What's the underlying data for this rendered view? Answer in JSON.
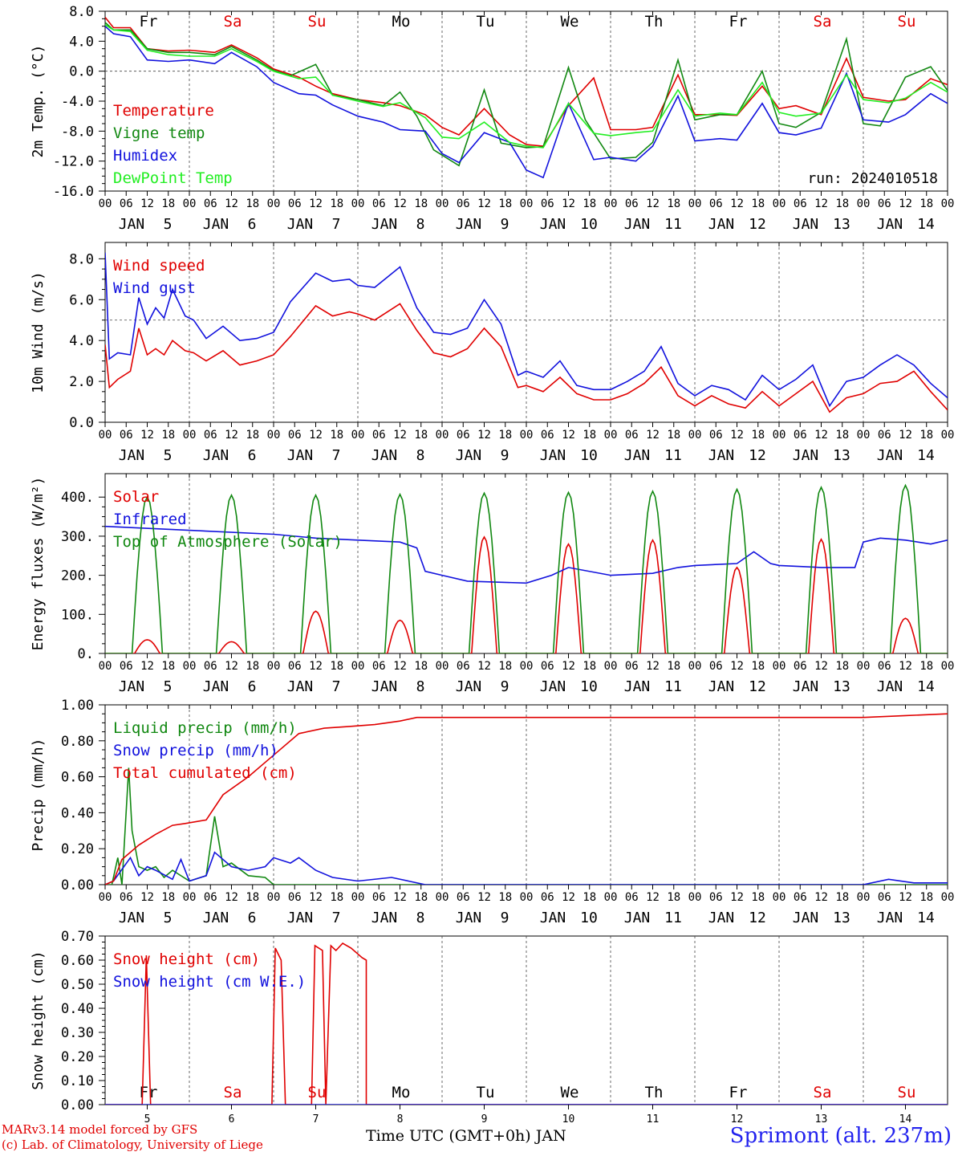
{
  "run_label": "run: 2024010518",
  "footer": {
    "credit_line1": "MARv3.14 model forced by GFS",
    "credit_line2": "(c) Lab. of Climatology, University of Liege",
    "location": "Sprimont (alt. 237m)",
    "x_title": "Time UTC (GMT+0h) JAN"
  },
  "colors": {
    "red": "#e00000",
    "green": "#118811",
    "blue": "#1111dd",
    "lightgreen": "#22ee22",
    "black": "#000000"
  },
  "chart_data": [
    {
      "type": "line",
      "ylabel": "2m Temp. (°C)",
      "ylim": [
        -16,
        8
      ],
      "yticks": [
        8,
        4,
        0,
        -4,
        -8,
        -12,
        -16
      ],
      "ytick_labels": [
        "8.0",
        "4.0",
        "0.0",
        "-4.0",
        "-8.0",
        "-12.0",
        "-16.0"
      ],
      "refline": 0,
      "days": [
        {
          "label": "Fr",
          "color": "black"
        },
        {
          "label": "Sa",
          "color": "red"
        },
        {
          "label": "Su",
          "color": "red"
        },
        {
          "label": "Mo",
          "color": "black"
        },
        {
          "label": "Tu",
          "color": "black"
        },
        {
          "label": "We",
          "color": "black"
        },
        {
          "label": "Th",
          "color": "black"
        },
        {
          "label": "Fr",
          "color": "black"
        },
        {
          "label": "Sa",
          "color": "red"
        },
        {
          "label": "Su",
          "color": "red"
        }
      ],
      "series": [
        {
          "name": "Temperature",
          "color": "red",
          "x": [
            0,
            0.1,
            0.3,
            0.5,
            0.75,
            1,
            1.3,
            1.5,
            1.8,
            2,
            2.3,
            2.5,
            2.7,
            3,
            3.3,
            3.5,
            3.8,
            4,
            4.2,
            4.5,
            4.8,
            5,
            5.2,
            5.5,
            5.8,
            6,
            6.3,
            6.5,
            6.8,
            7,
            7.3,
            7.5,
            7.8,
            8,
            8.2,
            8.5,
            8.8,
            9,
            9.3,
            9.5,
            9.8,
            10
          ],
          "y": [
            7.2,
            5.8,
            5.8,
            3,
            2.7,
            2.8,
            2.5,
            3.5,
            1.8,
            0.3,
            -0.8,
            -2,
            -3,
            -3.8,
            -4.2,
            -4.6,
            -5.8,
            -7.5,
            -8.5,
            -5,
            -8.5,
            -9.8,
            -10,
            -4.6,
            -0.9,
            -7.8,
            -7.8,
            -7.5,
            -0.5,
            -5.8,
            -5.8,
            -5.9,
            -2,
            -5,
            -4.6,
            -5.8,
            1.7,
            -3.5,
            -4,
            -3.8,
            -1,
            -1.8
          ]
        },
        {
          "name": "Vigne temp",
          "color": "green",
          "x": [
            0,
            0.1,
            0.3,
            0.5,
            0.75,
            1,
            1.3,
            1.5,
            1.8,
            2,
            2.2,
            2.5,
            2.7,
            3,
            3.3,
            3.5,
            3.7,
            3.9,
            4.2,
            4.5,
            4.7,
            5,
            5.2,
            5.5,
            5.7,
            6,
            6.3,
            6.5,
            6.8,
            7,
            7.3,
            7.5,
            7.8,
            8,
            8.2,
            8.5,
            8.8,
            9,
            9.2,
            9.5,
            9.8,
            10
          ],
          "y": [
            6.5,
            5.5,
            5.5,
            3,
            2.5,
            2.5,
            2.2,
            3.3,
            1.5,
            0.1,
            -0.6,
            0.9,
            -3.2,
            -3.8,
            -4.6,
            -2.8,
            -6,
            -10.5,
            -12.6,
            -2.5,
            -9.6,
            -10.2,
            -10.1,
            0.5,
            -6.5,
            -11.7,
            -11.5,
            -9.5,
            1.5,
            -6.5,
            -5.8,
            -5.8,
            0,
            -7,
            -7.5,
            -5.5,
            4.3,
            -7,
            -7.3,
            -0.8,
            0.6,
            -2.6
          ]
        },
        {
          "name": "Humidex",
          "color": "blue",
          "x": [
            0,
            0.1,
            0.3,
            0.5,
            0.75,
            1,
            1.3,
            1.5,
            1.8,
            2,
            2.3,
            2.5,
            2.7,
            3,
            3.3,
            3.5,
            3.8,
            4,
            4.2,
            4.5,
            4.8,
            5,
            5.2,
            5.5,
            5.8,
            6,
            6.3,
            6.5,
            6.8,
            7,
            7.3,
            7.5,
            7.8,
            8,
            8.2,
            8.5,
            8.8,
            9,
            9.3,
            9.5,
            9.8,
            10
          ],
          "y": [
            6,
            5,
            4.6,
            1.5,
            1.3,
            1.5,
            1,
            2.5,
            0.6,
            -1.5,
            -3,
            -3.2,
            -4.5,
            -6,
            -6.8,
            -7.8,
            -8,
            -11,
            -12.2,
            -8.2,
            -9.5,
            -13.2,
            -14.2,
            -4.3,
            -11.8,
            -11.5,
            -12,
            -10,
            -3.3,
            -9.3,
            -9,
            -9.2,
            -4.3,
            -8.2,
            -8.5,
            -7.6,
            -0.3,
            -6.5,
            -6.8,
            -5.8,
            -3,
            -4.3
          ]
        },
        {
          "name": "DewPoint Temp",
          "color": "lightgreen",
          "x": [
            0,
            0.1,
            0.3,
            0.5,
            0.75,
            1,
            1.3,
            1.5,
            1.8,
            2,
            2.3,
            2.5,
            2.7,
            3,
            3.3,
            3.5,
            3.8,
            4,
            4.2,
            4.5,
            4.8,
            5,
            5.2,
            5.5,
            5.8,
            6,
            6.3,
            6.5,
            6.8,
            7,
            7.3,
            7.5,
            7.8,
            8,
            8.2,
            8.5,
            8.8,
            9,
            9.3,
            9.5,
            9.8,
            10
          ],
          "y": [
            6.2,
            5.5,
            5.3,
            2.8,
            2.2,
            2,
            2,
            3,
            1.3,
            0,
            -1,
            -0.8,
            -3.2,
            -4,
            -4.7,
            -4.2,
            -6.2,
            -8.8,
            -9,
            -6.8,
            -9.5,
            -10,
            -10.2,
            -4.3,
            -8.3,
            -8.6,
            -8.2,
            -8,
            -2.5,
            -6,
            -5.6,
            -5.8,
            -1.5,
            -5.5,
            -6,
            -5.6,
            -0.5,
            -3.8,
            -4.2,
            -3.6,
            -1.5,
            -2.8
          ]
        }
      ],
      "legend": [
        "Temperature",
        "Vigne temp",
        "Humidex",
        "DewPoint Temp"
      ]
    },
    {
      "type": "line",
      "ylabel": "10m Wind (m/s)",
      "ylim": [
        0,
        8.8
      ],
      "yticks": [
        0,
        2,
        4,
        6,
        8
      ],
      "ytick_labels": [
        "0.0",
        "2.0",
        "4.0",
        "6.0",
        "8.0"
      ],
      "refline": 5,
      "series": [
        {
          "name": "Wind speed",
          "color": "red",
          "x": [
            0,
            0.05,
            0.15,
            0.3,
            0.4,
            0.5,
            0.6,
            0.7,
            0.8,
            0.95,
            1.05,
            1.2,
            1.4,
            1.6,
            1.8,
            2,
            2.2,
            2.5,
            2.7,
            2.9,
            3,
            3.2,
            3.5,
            3.7,
            3.9,
            4.1,
            4.3,
            4.5,
            4.7,
            4.9,
            5,
            5.2,
            5.4,
            5.6,
            5.8,
            6,
            6.2,
            6.4,
            6.6,
            6.8,
            7,
            7.2,
            7.4,
            7.6,
            7.8,
            8,
            8.2,
            8.4,
            8.6,
            8.8,
            9,
            9.2,
            9.4,
            9.6,
            9.8,
            10
          ],
          "y": [
            3.8,
            1.7,
            2.1,
            2.5,
            4.6,
            3.3,
            3.6,
            3.3,
            4,
            3.5,
            3.4,
            3,
            3.5,
            2.8,
            3,
            3.3,
            4.2,
            5.7,
            5.2,
            5.4,
            5.3,
            5,
            5.8,
            4.5,
            3.4,
            3.2,
            3.6,
            4.6,
            3.7,
            1.7,
            1.8,
            1.5,
            2.2,
            1.4,
            1.1,
            1.1,
            1.4,
            1.9,
            2.7,
            1.3,
            0.8,
            1.3,
            0.9,
            0.7,
            1.5,
            0.8,
            1.4,
            2,
            0.5,
            1.2,
            1.4,
            1.9,
            2,
            2.5,
            1.5,
            0.6
          ]
        },
        {
          "name": "Wind gust",
          "color": "blue",
          "x": [
            0,
            0.05,
            0.15,
            0.3,
            0.4,
            0.5,
            0.6,
            0.7,
            0.8,
            0.95,
            1.05,
            1.2,
            1.4,
            1.6,
            1.8,
            2,
            2.2,
            2.5,
            2.7,
            2.9,
            3,
            3.2,
            3.5,
            3.7,
            3.9,
            4.1,
            4.3,
            4.5,
            4.7,
            4.9,
            5,
            5.2,
            5.4,
            5.6,
            5.8,
            6,
            6.2,
            6.4,
            6.6,
            6.8,
            7,
            7.2,
            7.4,
            7.6,
            7.8,
            8,
            8.2,
            8.4,
            8.6,
            8.8,
            9,
            9.2,
            9.4,
            9.6,
            9.8,
            10
          ],
          "y": [
            8.3,
            3.1,
            3.4,
            3.3,
            6.1,
            4.8,
            5.6,
            5.1,
            6.5,
            5.2,
            5,
            4.1,
            4.7,
            4,
            4.1,
            4.4,
            5.9,
            7.3,
            6.9,
            7,
            6.7,
            6.6,
            7.6,
            5.6,
            4.4,
            4.3,
            4.6,
            6,
            4.8,
            2.3,
            2.5,
            2.2,
            3,
            1.8,
            1.6,
            1.6,
            2,
            2.5,
            3.7,
            1.9,
            1.3,
            1.8,
            1.6,
            1.1,
            2.3,
            1.6,
            2.1,
            2.8,
            0.8,
            2,
            2.2,
            2.8,
            3.3,
            2.8,
            1.9,
            1.2
          ]
        }
      ],
      "legend": [
        "Wind speed",
        "Wind gust"
      ]
    },
    {
      "type": "line",
      "ylabel": "Energy fluxes (W/m²)",
      "ylim": [
        0,
        460
      ],
      "yticks": [
        0,
        100,
        200,
        300,
        400
      ],
      "ytick_labels": [
        "0.",
        "100.",
        "200.",
        "300.",
        "400."
      ],
      "solar_peaks": [
        35,
        30,
        108,
        85,
        298,
        280,
        290,
        220,
        292,
        90
      ],
      "toa_peaks": [
        400,
        405,
        405,
        407,
        410,
        412,
        415,
        420,
        425,
        430
      ],
      "series": [
        {
          "name": "Solar",
          "color": "red"
        },
        {
          "name": "Infrared",
          "color": "blue",
          "x": [
            0,
            1,
            2,
            2.5,
            3,
            3.5,
            3.7,
            3.8,
            4,
            4.3,
            5,
            5.3,
            5.5,
            6,
            6.5,
            6.8,
            7,
            7.5,
            7.7,
            7.9,
            8,
            8.5,
            8.9,
            9,
            9.2,
            9.5,
            9.8,
            10
          ],
          "y": [
            325,
            315,
            305,
            295,
            290,
            285,
            270,
            210,
            200,
            185,
            180,
            200,
            220,
            200,
            205,
            220,
            225,
            230,
            260,
            230,
            225,
            220,
            220,
            285,
            295,
            290,
            280,
            290
          ]
        },
        {
          "name": "Top of Atmosphere (Solar)",
          "color": "green"
        }
      ],
      "legend": [
        "Solar",
        "Infrared",
        "Top of Atmosphere (Solar)"
      ]
    },
    {
      "type": "line",
      "ylabel": "Precip (mm/h)",
      "ylim": [
        0,
        1
      ],
      "yticks": [
        0,
        0.2,
        0.4,
        0.6,
        0.8,
        1
      ],
      "ytick_labels": [
        "0.00",
        "0.20",
        "0.40",
        "0.60",
        "0.80",
        "1.00"
      ],
      "series": [
        {
          "name": "Liquid precip (mm/h)",
          "color": "green",
          "x": [
            0,
            0.08,
            0.15,
            0.2,
            0.28,
            0.32,
            0.4,
            0.5,
            0.6,
            0.7,
            0.8,
            1,
            1.2,
            1.3,
            1.4,
            1.5,
            1.7,
            1.9,
            2,
            3,
            10
          ],
          "y": [
            0,
            0,
            0.15,
            0,
            0.65,
            0.3,
            0.1,
            0.08,
            0.1,
            0.04,
            0.08,
            0.02,
            0.05,
            0.38,
            0.1,
            0.12,
            0.05,
            0.04,
            0,
            0,
            0
          ]
        },
        {
          "name": "Snow precip (mm/h)",
          "color": "blue",
          "x": [
            0,
            0.1,
            0.3,
            0.4,
            0.5,
            0.6,
            0.8,
            0.9,
            1,
            1.2,
            1.3,
            1.5,
            1.7,
            1.9,
            2,
            2.2,
            2.3,
            2.5,
            2.7,
            3,
            3.4,
            3.6,
            3.8,
            4,
            9,
            9.3,
            9.6,
            10
          ],
          "y": [
            0,
            0.02,
            0.15,
            0.05,
            0.1,
            0.08,
            0.03,
            0.14,
            0.02,
            0.05,
            0.18,
            0.1,
            0.08,
            0.1,
            0.15,
            0.12,
            0.15,
            0.08,
            0.04,
            0.02,
            0.04,
            0.02,
            0,
            0,
            0,
            0.03,
            0.01,
            0.01
          ]
        },
        {
          "name": "Total cumulated (cm)",
          "color": "red",
          "x": [
            0,
            0.1,
            0.2,
            0.4,
            0.6,
            0.8,
            0.95,
            1.2,
            1.4,
            1.7,
            2,
            2.3,
            2.6,
            2.9,
            3.2,
            3.5,
            3.7,
            4,
            9,
            9.5,
            10
          ],
          "y": [
            0,
            0.02,
            0.14,
            0.22,
            0.28,
            0.33,
            0.34,
            0.36,
            0.5,
            0.6,
            0.72,
            0.84,
            0.87,
            0.88,
            0.89,
            0.91,
            0.93,
            0.93,
            0.93,
            0.94,
            0.95
          ]
        }
      ],
      "legend": [
        "Liquid precip (mm/h)",
        "Snow precip (mm/h)",
        "Total cumulated (cm)"
      ]
    },
    {
      "type": "line",
      "ylabel": "Snow height (cm)",
      "ylim": [
        0,
        0.7
      ],
      "yticks": [
        0,
        0.1,
        0.2,
        0.3,
        0.4,
        0.5,
        0.6,
        0.7
      ],
      "ytick_labels": [
        "0.00",
        "0.10",
        "0.20",
        "0.30",
        "0.40",
        "0.50",
        "0.60",
        "0.70"
      ],
      "x_tick_labels": [
        "5",
        "6",
        "7",
        "8",
        "9",
        "10",
        "11",
        "12",
        "13",
        "14"
      ],
      "series": [
        {
          "name": "Snow height (cm)",
          "color": "red",
          "x": [
            0,
            0.44,
            0.49,
            0.54,
            1.98,
            2.02,
            2.09,
            2.14,
            2.45,
            2.49,
            2.58,
            2.62,
            2.68,
            2.74,
            2.82,
            2.92,
            3.05,
            3.1,
            3.1,
            10
          ],
          "y": [
            0,
            0,
            0.62,
            0,
            0,
            0.65,
            0.6,
            0,
            0,
            0.66,
            0.64,
            0,
            0.66,
            0.64,
            0.67,
            0.65,
            0.61,
            0.6,
            0,
            0
          ]
        },
        {
          "name": "Snow height (cm W.E.)",
          "color": "blue",
          "x": [
            0,
            10
          ],
          "y": [
            0,
            0
          ]
        }
      ],
      "legend": [
        "Snow height (cm)",
        "Snow height (cm W.E.)"
      ]
    }
  ]
}
